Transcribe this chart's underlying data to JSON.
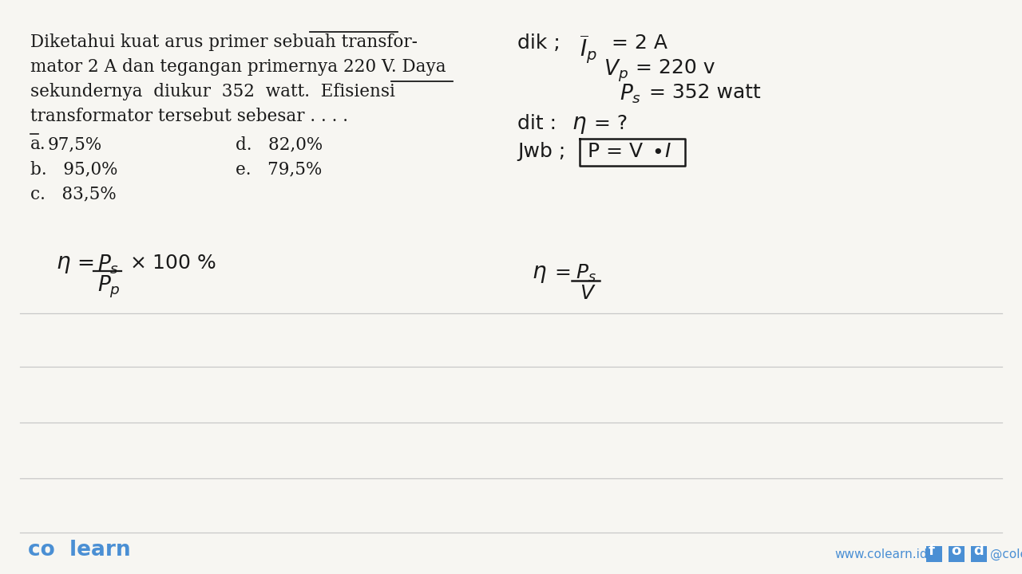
{
  "bg_color": "#f7f6f2",
  "text_color": "#1a1a1a",
  "line_color": "#c8c8c8",
  "colearn_blue": "#4a8fd4",
  "q_line1": "Diketahui kuat arus primer sebuah transfor-",
  "q_line2": "mator 2 A dan tegangan primernya 220 V. Daya",
  "q_line3": "sekundernya  diukur  352  watt.  Efisiensi",
  "q_line4": "transformator tersebut sebesar . . . .",
  "opt_a": "97,5%",
  "opt_b": "95,0%",
  "opt_c": "83,5%",
  "opt_d": "82,0%",
  "opt_e": "79,5%"
}
